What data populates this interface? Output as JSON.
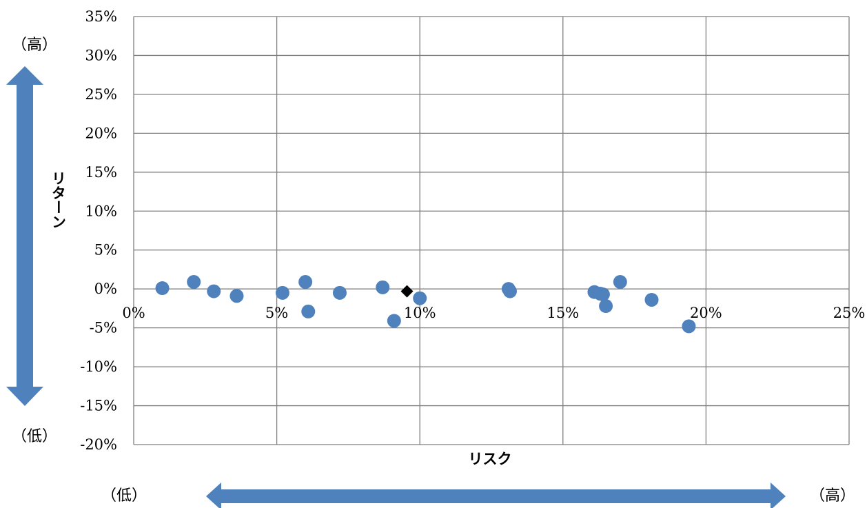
{
  "chart_data": {
    "type": "scatter",
    "title": "",
    "xlabel": "リスク",
    "ylabel": "リターン",
    "xlim": [
      0,
      25
    ],
    "ylim": [
      -20,
      35
    ],
    "x_ticks": [
      "0%",
      "5%",
      "10%",
      "15%",
      "20%",
      "25%"
    ],
    "y_ticks": [
      "35%",
      "30%",
      "25%",
      "20%",
      "15%",
      "10%",
      "5%",
      "0%",
      "-5%",
      "-10%",
      "-15%",
      "-20%"
    ],
    "grid": true,
    "series": [
      {
        "marker": "circle",
        "color": "#4f81bd",
        "points": [
          {
            "x": 1.0,
            "y": 0.1
          },
          {
            "x": 2.1,
            "y": 0.9
          },
          {
            "x": 2.8,
            "y": -0.3
          },
          {
            "x": 3.6,
            "y": -0.9
          },
          {
            "x": 5.2,
            "y": -0.5
          },
          {
            "x": 6.0,
            "y": 0.9
          },
          {
            "x": 6.1,
            "y": -2.9
          },
          {
            "x": 7.2,
            "y": -0.5
          },
          {
            "x": 8.7,
            "y": 0.2
          },
          {
            "x": 9.1,
            "y": -4.1
          },
          {
            "x": 10.0,
            "y": -1.2
          },
          {
            "x": 13.1,
            "y": 0.0
          },
          {
            "x": 13.15,
            "y": -0.3
          },
          {
            "x": 16.1,
            "y": -0.4
          },
          {
            "x": 16.3,
            "y": -0.6
          },
          {
            "x": 16.4,
            "y": -0.7
          },
          {
            "x": 16.5,
            "y": -2.2
          },
          {
            "x": 17.0,
            "y": 0.9
          },
          {
            "x": 18.1,
            "y": -1.4
          },
          {
            "x": 19.4,
            "y": -4.8
          }
        ]
      },
      {
        "marker": "diamond",
        "color": "#000000",
        "points": [
          {
            "x": 9.55,
            "y": -0.3
          }
        ]
      }
    ],
    "annotations": {
      "y_high": "（高）",
      "y_low": "（低）",
      "x_low": "（低）",
      "x_high": "（高）"
    },
    "arrow_color": "#4f81bd"
  }
}
